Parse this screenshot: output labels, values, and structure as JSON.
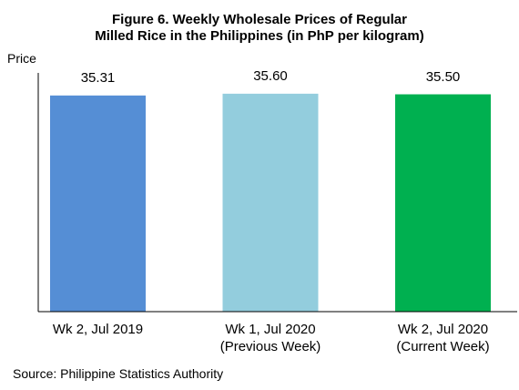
{
  "chart_data": {
    "type": "bar",
    "title": "Figure 6. Weekly Wholesale Prices of Regular\nMilled Rice in the Philippines (in PhP per kilogram)",
    "y_label": "Price",
    "categories": [
      "Wk 2, Jul 2019",
      "Wk 1, Jul 2020\n(Previous Week)",
      "Wk 2, Jul 2020\n(Current Week)"
    ],
    "values": [
      35.31,
      35.6,
      35.5
    ],
    "value_labels": [
      "35.31",
      "35.60",
      "35.50"
    ],
    "colors": [
      "#558ed5",
      "#93cddd",
      "#00b050"
    ],
    "ylim": [
      0,
      39
    ],
    "source": "Source: Philippine Statistics Authority"
  }
}
